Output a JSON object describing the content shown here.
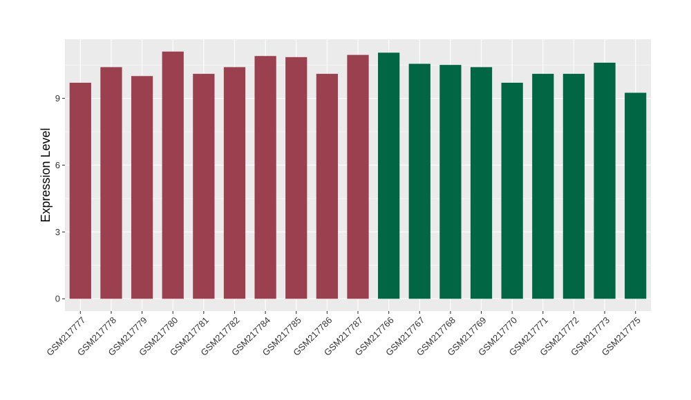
{
  "chart_data": {
    "type": "bar",
    "title": "",
    "xlabel": "",
    "ylabel": "Expression Level",
    "ylim": [
      -0.55,
      11.65
    ],
    "yticks": [
      0,
      3,
      6,
      9
    ],
    "grid": true,
    "legend": "none",
    "categories": [
      "GSM217777",
      "GSM217778",
      "GSM217779",
      "GSM217780",
      "GSM217781",
      "GSM217782",
      "GSM217784",
      "GSM217785",
      "GSM217786",
      "GSM217787",
      "GSM217766",
      "GSM217767",
      "GSM217768",
      "GSM217769",
      "GSM217770",
      "GSM217771",
      "GSM217772",
      "GSM217773",
      "GSM217775"
    ],
    "values": [
      9.7,
      10.4,
      10.0,
      11.1,
      10.1,
      10.4,
      10.9,
      10.85,
      10.1,
      10.95,
      11.05,
      10.55,
      10.5,
      10.4,
      9.7,
      10.1,
      10.1,
      10.6,
      9.25
    ],
    "groups": [
      1,
      1,
      1,
      1,
      1,
      1,
      1,
      1,
      1,
      1,
      2,
      2,
      2,
      2,
      2,
      2,
      2,
      2,
      2
    ],
    "colors": {
      "group1": "#9B404F",
      "group2": "#006644",
      "panel": "#EBEBEB",
      "grid": "#FFFFFF"
    }
  }
}
